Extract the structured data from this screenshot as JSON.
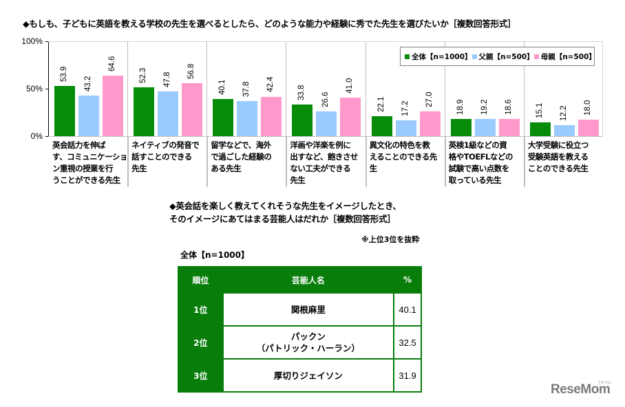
{
  "chart_data": {
    "type": "bar",
    "title": "◆もしも、子どもに英語を教える学校の先生を選べるとしたら、どのような能力や経験に秀でた先生を選びたいか［複数回答形式］",
    "xlabel": "",
    "ylabel": "",
    "ylim": [
      0,
      100
    ],
    "yticks": [
      "100%",
      "50%",
      "0%"
    ],
    "grid": false,
    "legend_position": "top-right inside",
    "categories": [
      "英会話力を伸ばす、コミュニケーション重視の授業を行うことができる先生",
      "ネイティブの発音で話すことのできる先生",
      "留学などで、海外で過ごした経験のある先生",
      "洋画や洋楽を例に出すなど、飽きさせない工夫ができる先生",
      "異文化の特色を教えることのできる先生",
      "英検1級などの資格やTOEFLなどの試験で高い点数を取っている先生",
      "大学受験に役立つ受験英語を教えることのできる先生"
    ],
    "series": [
      {
        "name": "全体【n=1000】",
        "color": "#078c0a",
        "values": [
          53.9,
          52.3,
          40.1,
          33.8,
          22.1,
          18.9,
          15.1
        ]
      },
      {
        "name": "父親【n=500】",
        "color": "#99cbff",
        "values": [
          43.2,
          47.8,
          37.8,
          26.6,
          17.2,
          19.2,
          12.2
        ]
      },
      {
        "name": "母親【n=500】",
        "color": "#ff99cc",
        "values": [
          64.6,
          56.8,
          42.4,
          41.0,
          27.0,
          18.6,
          18.0
        ]
      }
    ]
  },
  "chart": {
    "title": "◆もしも、子どもに英語を教える学校の先生を選べるとしたら、どのような能力や経験に秀でた先生を選びたいか［複数回答形式］",
    "y_labels": [
      "100%",
      "50%",
      "0%"
    ],
    "legend": [
      "全体【n=1000】",
      "父親【n=500】",
      "母親【n=500】"
    ],
    "categories": [
      [
        "英会話力を伸ば",
        "す、コミュニケーショ",
        "ン重視の授業を行",
        "うことができる先生"
      ],
      [
        "ネイティブの発音で",
        "話すことのできる",
        "先生"
      ],
      [
        "留学などで、海外",
        "で過ごした経験の",
        "ある先生"
      ],
      [
        "洋画や洋楽を例に",
        "出すなど、飽きさせ",
        "ない工夫ができる",
        "先生"
      ],
      [
        "異文化の特色を教",
        "えることのできる先",
        "生"
      ],
      [
        "英検1級などの資",
        "格やTOEFLなどの",
        "試験で高い点数を",
        "取っている先生"
      ],
      [
        "大学受験に役立つ",
        "受験英語を教える",
        "ことのできる先生"
      ]
    ],
    "values": [
      [
        "53.9",
        "43.2",
        "64.6"
      ],
      [
        "52.3",
        "47.8",
        "56.8"
      ],
      [
        "40.1",
        "37.8",
        "42.4"
      ],
      [
        "33.8",
        "26.6",
        "41.0"
      ],
      [
        "22.1",
        "17.2",
        "27.0"
      ],
      [
        "18.9",
        "19.2",
        "18.6"
      ],
      [
        "15.1",
        "12.2",
        "18.0"
      ]
    ]
  },
  "section2": {
    "title_line1": "◆英会話を楽しく教えてくれそうな先生をイメージしたとき、",
    "title_line2": "そのイメージにあてはまる芸能人はだれか［複数回答形式］",
    "note": "※上位3位を抜粋",
    "subtitle": "全体【n=1000】",
    "table": {
      "headers": [
        "順位",
        "芸能人名",
        "%"
      ],
      "rows": [
        {
          "rank": "1位",
          "name_line1": "関根麻里",
          "name_line2": "",
          "pct": "40.1"
        },
        {
          "rank": "2位",
          "name_line1": "パックン",
          "name_line2": "（パトリック・ハーラン）",
          "pct": "32.5"
        },
        {
          "rank": "3位",
          "name_line1": "厚切りジェイソン",
          "name_line2": "",
          "pct": "31.9"
        }
      ]
    }
  },
  "watermark": {
    "logo": "ReseMom",
    "small": "リセマム"
  }
}
